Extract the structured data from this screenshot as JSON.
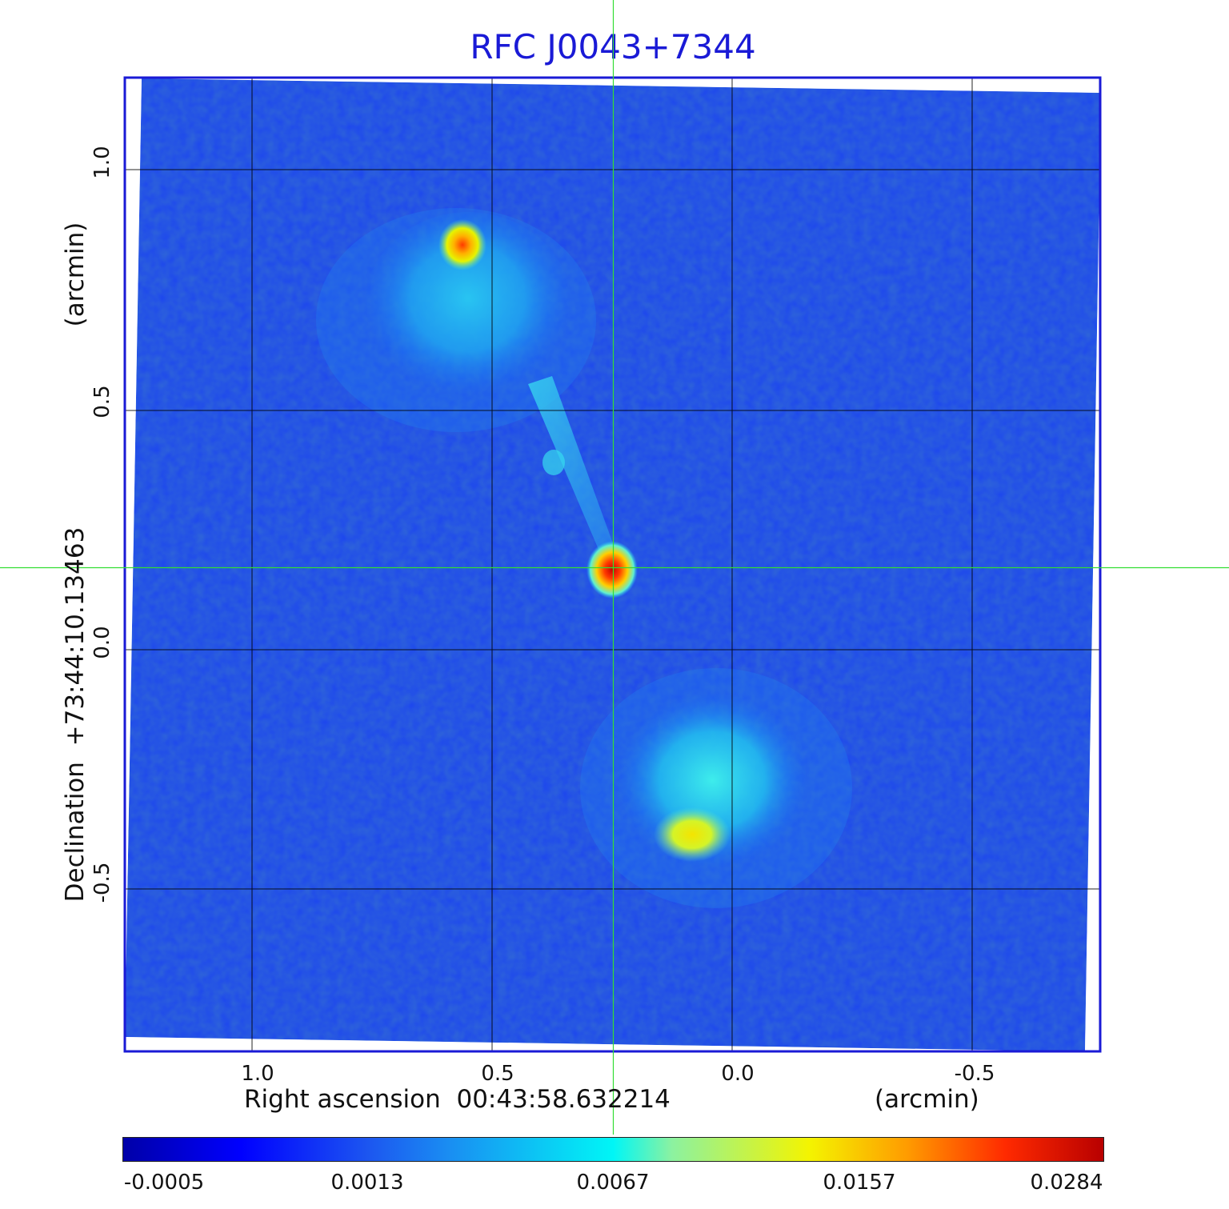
{
  "chart_data": {
    "type": "heatmap",
    "title": "RFC J0043+7344",
    "xlabel": "Right ascension  00:43:58.632214",
    "x_unit": "(arcmin)",
    "ylabel": "Declination  +73:44:10.13463",
    "y_unit": "(arcmin)",
    "x_ticks": [
      "1.0",
      "0.5",
      "0.0",
      "-0.5"
    ],
    "y_ticks": [
      "1.0",
      "0.5",
      "0.0",
      "-0.5"
    ],
    "x_tick_values": [
      1.0,
      0.5,
      0.0,
      -0.5
    ],
    "y_tick_values": [
      1.0,
      0.5,
      0.0,
      -0.5
    ],
    "xlim": [
      1.26,
      -0.77
    ],
    "ylim": [
      -0.84,
      1.19
    ],
    "grid": true,
    "crosshair": {
      "x": 0.25,
      "y": 0.17
    },
    "colormap": "jet",
    "colorbar_ticks": [
      "-0.0005",
      "0.0013",
      "0.0067",
      "0.0157",
      "0.0284"
    ],
    "colorbar_range": [
      -0.0005,
      0.0284
    ],
    "features": [
      {
        "type": "core",
        "x": 0.25,
        "y": 0.17,
        "peak": 0.0284
      },
      {
        "type": "lobe",
        "x": 0.57,
        "y": 0.84,
        "peak": 0.0157
      },
      {
        "type": "lobe",
        "x": 0.09,
        "y": -0.39,
        "peak": 0.01
      }
    ]
  },
  "colors": {
    "title": "#1a1ad6",
    "frame": "#1a1ad6",
    "crosshair": "#33dd33",
    "background_map": "#1a3ff0"
  }
}
